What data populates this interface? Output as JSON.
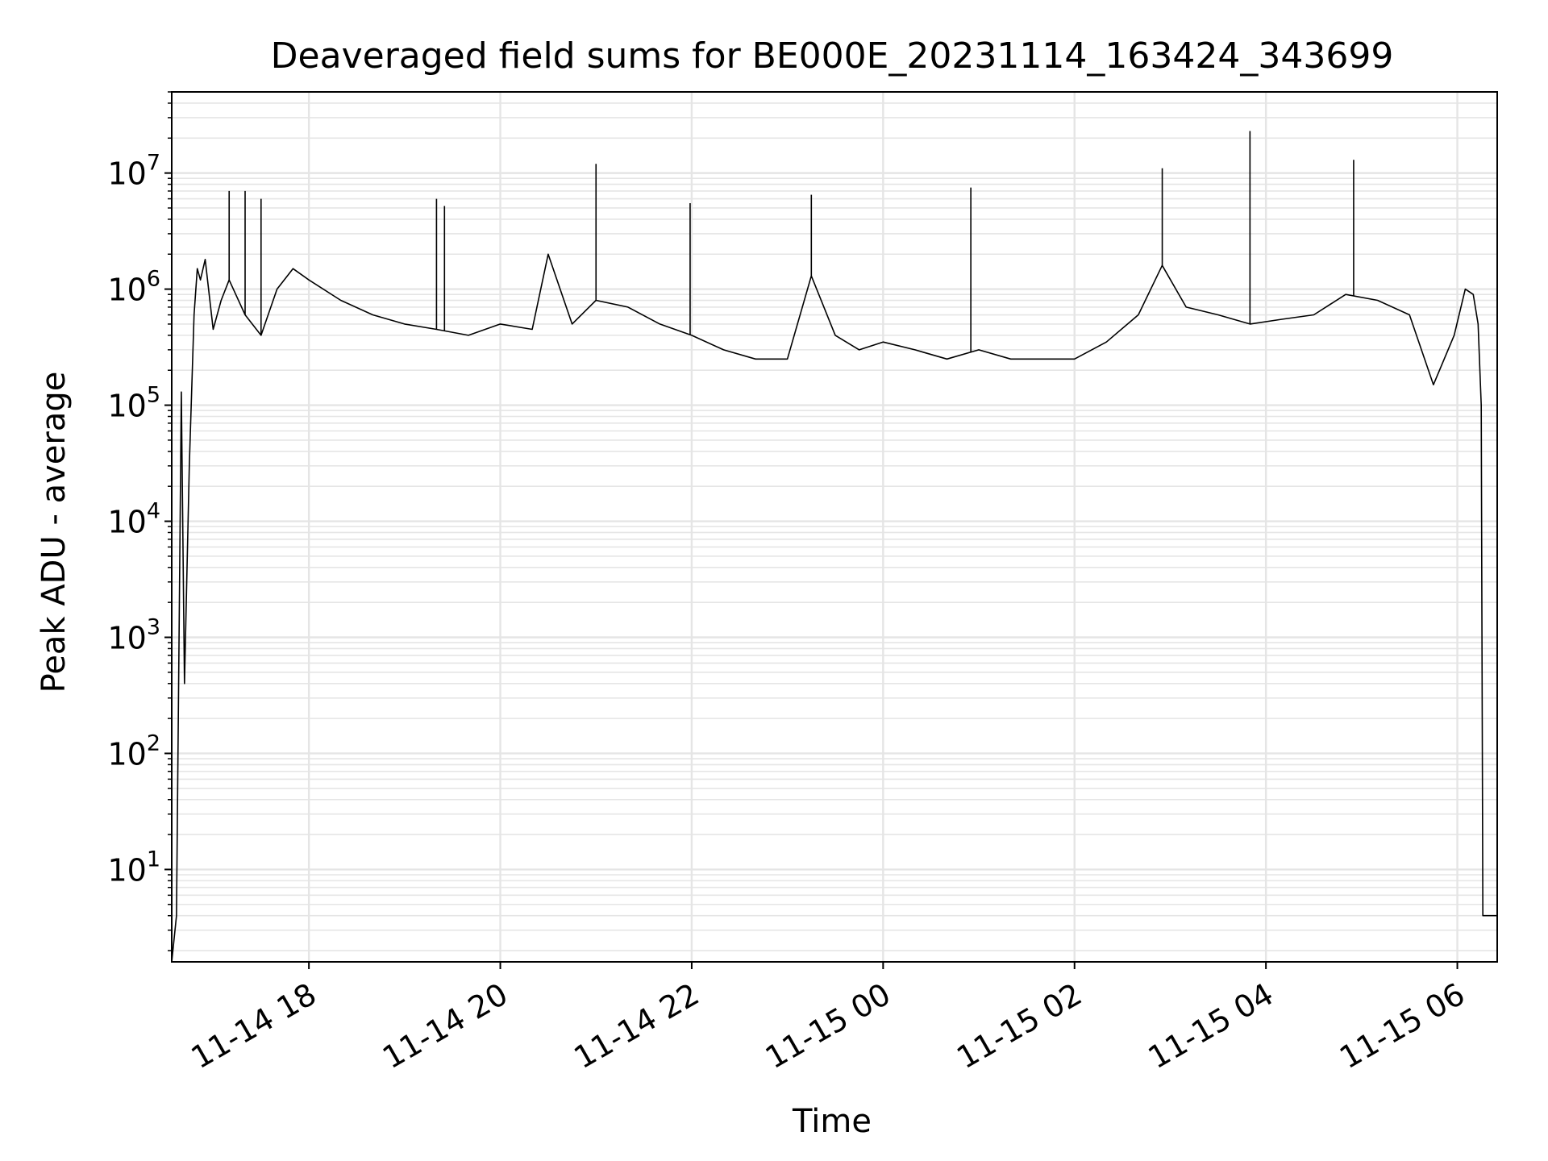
{
  "chart_data": {
    "type": "line",
    "title": "Deaveraged field sums for BE000E_20231114_163424_343699",
    "xlabel": "Time",
    "ylabel": "Peak ADU - average",
    "yscale": "log",
    "ylim": [
      1.6,
      50000000
    ],
    "xlim": [
      "2023-11-14 16:34",
      "2023-11-15 06:25"
    ],
    "grid": true,
    "line_color": "#000000",
    "grid_color": "#e5e5e5",
    "x_ticks": [
      {
        "value": "2023-11-14 18:00",
        "label": "11-14 18"
      },
      {
        "value": "2023-11-14 20:00",
        "label": "11-14 20"
      },
      {
        "value": "2023-11-14 22:00",
        "label": "11-14 22"
      },
      {
        "value": "2023-11-15 00:00",
        "label": "11-15 00"
      },
      {
        "value": "2023-11-15 02:00",
        "label": "11-15 02"
      },
      {
        "value": "2023-11-15 04:00",
        "label": "11-15 04"
      },
      {
        "value": "2023-11-15 06:00",
        "label": "11-15 06"
      }
    ],
    "y_ticks": [
      {
        "value": 10,
        "base": "10",
        "exp": "1"
      },
      {
        "value": 100,
        "base": "10",
        "exp": "2"
      },
      {
        "value": 1000,
        "base": "10",
        "exp": "3"
      },
      {
        "value": 10000,
        "base": "10",
        "exp": "4"
      },
      {
        "value": 100000,
        "base": "10",
        "exp": "5"
      },
      {
        "value": 1000000,
        "base": "10",
        "exp": "6"
      },
      {
        "value": 10000000,
        "base": "10",
        "exp": "7"
      }
    ],
    "series": [
      {
        "x": [
          "2023-11-14 16:34",
          "2023-11-14 16:37",
          "2023-11-14 16:40",
          "2023-11-14 16:42",
          "2023-11-14 16:45",
          "2023-11-14 16:48",
          "2023-11-14 16:50",
          "2023-11-14 16:52",
          "2023-11-14 16:55",
          "2023-11-14 17:00",
          "2023-11-14 17:05",
          "2023-11-14 17:10",
          "2023-11-14 17:20",
          "2023-11-14 17:30",
          "2023-11-14 17:40",
          "2023-11-14 17:50",
          "2023-11-14 18:00",
          "2023-11-14 18:20",
          "2023-11-14 18:40",
          "2023-11-14 19:00",
          "2023-11-14 19:20",
          "2023-11-14 19:40",
          "2023-11-14 20:00",
          "2023-11-14 20:20",
          "2023-11-14 20:30",
          "2023-11-14 20:45",
          "2023-11-14 21:00",
          "2023-11-14 21:20",
          "2023-11-14 21:40",
          "2023-11-14 22:00",
          "2023-11-14 22:20",
          "2023-11-14 22:40",
          "2023-11-14 23:00",
          "2023-11-14 23:15",
          "2023-11-14 23:30",
          "2023-11-14 23:45",
          "2023-11-15 00:00",
          "2023-11-15 00:20",
          "2023-11-15 00:40",
          "2023-11-15 01:00",
          "2023-11-15 01:20",
          "2023-11-15 01:40",
          "2023-11-15 02:00",
          "2023-11-15 02:20",
          "2023-11-15 02:40",
          "2023-11-15 02:55",
          "2023-11-15 03:10",
          "2023-11-15 03:30",
          "2023-11-15 03:50",
          "2023-11-15 04:10",
          "2023-11-15 04:30",
          "2023-11-15 04:50",
          "2023-11-15 05:10",
          "2023-11-15 05:30",
          "2023-11-15 05:45",
          "2023-11-15 05:58",
          "2023-11-15 06:05",
          "2023-11-15 06:10",
          "2023-11-15 06:13",
          "2023-11-15 06:15",
          "2023-11-15 06:16",
          "2023-11-15 06:25"
        ],
        "y": [
          1.6,
          4,
          130000,
          400,
          30000,
          600000,
          1500000,
          1200000,
          1800000,
          450000,
          800000,
          1200000,
          600000,
          400000,
          1000000,
          1500000,
          1200000,
          800000,
          600000,
          500000,
          450000,
          400000,
          500000,
          450000,
          2000000,
          500000,
          800000,
          700000,
          500000,
          400000,
          300000,
          250000,
          250000,
          1300000,
          400000,
          300000,
          350000,
          300000,
          250000,
          300000,
          250000,
          250000,
          250000,
          350000,
          600000,
          1600000,
          700000,
          600000,
          500000,
          550000,
          600000,
          900000,
          800000,
          600000,
          150000,
          400000,
          1000000,
          900000,
          500000,
          100000,
          4,
          4
        ]
      }
    ],
    "spikes": [
      {
        "x": "2023-11-14 17:10",
        "y": 7000000
      },
      {
        "x": "2023-11-14 17:20",
        "y": 7000000
      },
      {
        "x": "2023-11-14 17:30",
        "y": 6000000
      },
      {
        "x": "2023-11-14 19:20",
        "y": 6000000
      },
      {
        "x": "2023-11-14 19:25",
        "y": 5200000
      },
      {
        "x": "2023-11-14 21:00",
        "y": 12000000
      },
      {
        "x": "2023-11-14 21:59",
        "y": 5500000
      },
      {
        "x": "2023-11-14 23:15",
        "y": 6500000
      },
      {
        "x": "2023-11-15 00:55",
        "y": 7500000
      },
      {
        "x": "2023-11-15 02:55",
        "y": 11000000
      },
      {
        "x": "2023-11-15 03:50",
        "y": 23000000
      },
      {
        "x": "2023-11-15 04:55",
        "y": 13000000
      }
    ]
  }
}
